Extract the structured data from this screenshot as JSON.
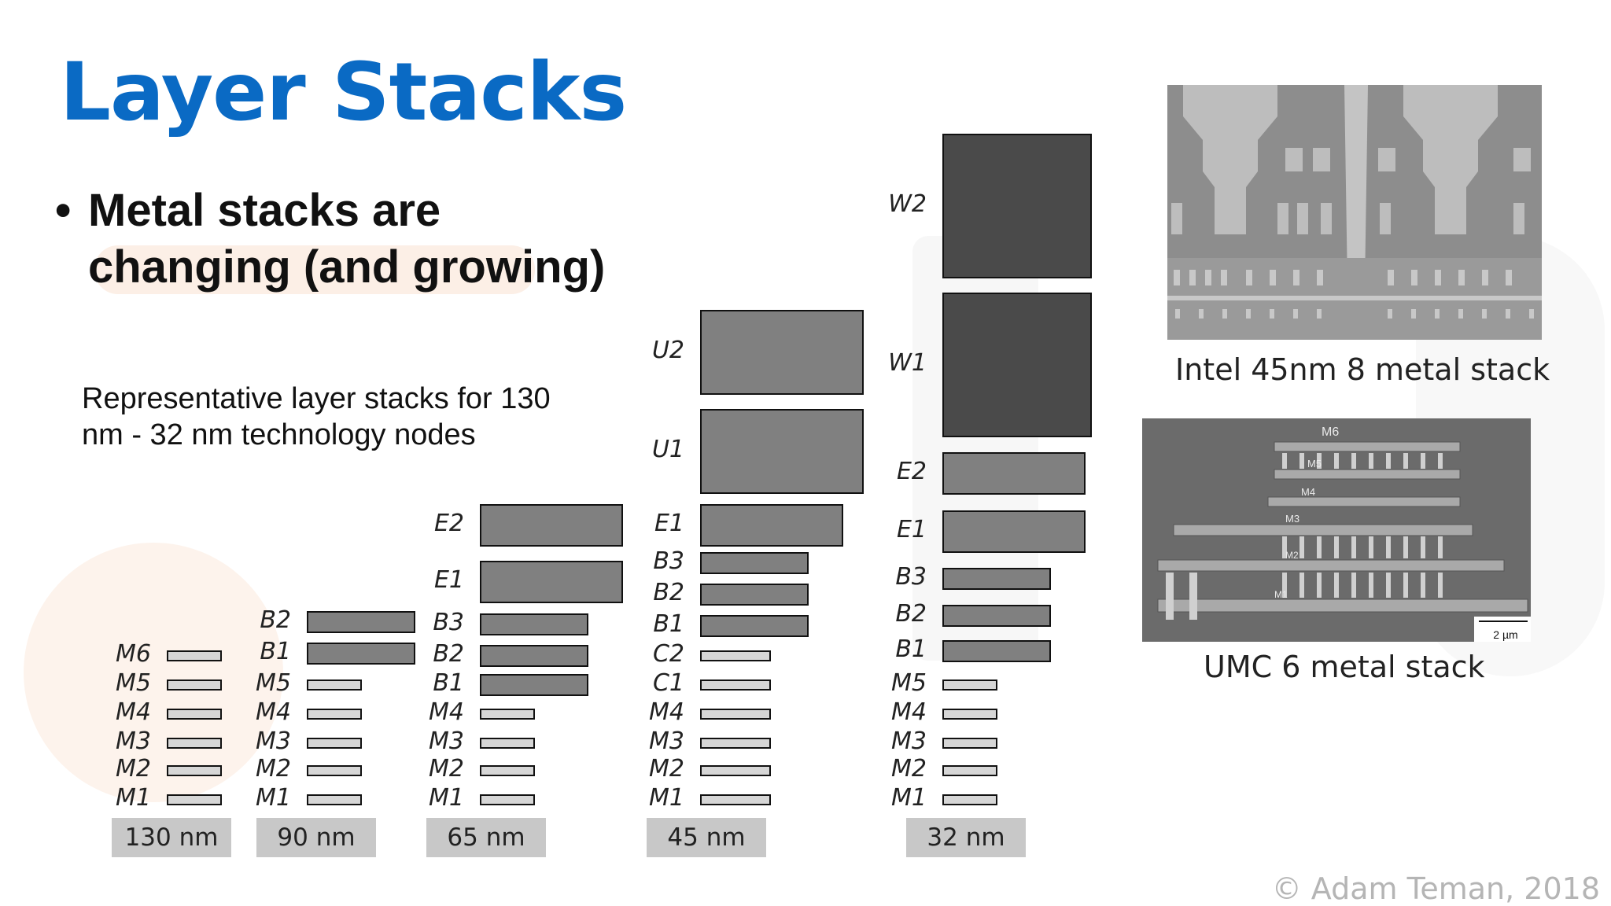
{
  "slide": {
    "title": "Layer Stacks",
    "bullet_marker": "•",
    "bullet": "Metal stacks are changing (and growing)",
    "caption": "Representative layer stacks for 130 nm - 32 nm technology nodes",
    "copyright": "© Adam Teman, 2018"
  },
  "stacks": [
    {
      "node": "130 nm",
      "layers": [
        {
          "name": "M6",
          "size": "thin"
        },
        {
          "name": "M5",
          "size": "thin"
        },
        {
          "name": "M4",
          "size": "thin"
        },
        {
          "name": "M3",
          "size": "thin"
        },
        {
          "name": "M2",
          "size": "thin"
        },
        {
          "name": "M1",
          "size": "thin"
        }
      ]
    },
    {
      "node": "90 nm",
      "layers": [
        {
          "name": "B2",
          "size": "mid"
        },
        {
          "name": "B1",
          "size": "mid"
        },
        {
          "name": "M5",
          "size": "thin"
        },
        {
          "name": "M4",
          "size": "thin"
        },
        {
          "name": "M3",
          "size": "thin"
        },
        {
          "name": "M2",
          "size": "thin"
        },
        {
          "name": "M1",
          "size": "thin"
        }
      ]
    },
    {
      "node": "65 nm",
      "layers": [
        {
          "name": "E2",
          "size": "large"
        },
        {
          "name": "E1",
          "size": "large"
        },
        {
          "name": "B3",
          "size": "mid"
        },
        {
          "name": "B2",
          "size": "mid"
        },
        {
          "name": "B1",
          "size": "mid"
        },
        {
          "name": "M4",
          "size": "thin"
        },
        {
          "name": "M3",
          "size": "thin"
        },
        {
          "name": "M2",
          "size": "thin"
        },
        {
          "name": "M1",
          "size": "thin"
        }
      ]
    },
    {
      "node": "45 nm",
      "layers": [
        {
          "name": "U2",
          "size": "xlarge"
        },
        {
          "name": "U1",
          "size": "xlarge"
        },
        {
          "name": "E1",
          "size": "large"
        },
        {
          "name": "B3",
          "size": "mid"
        },
        {
          "name": "B2",
          "size": "mid"
        },
        {
          "name": "B1",
          "size": "mid"
        },
        {
          "name": "C2",
          "size": "thin"
        },
        {
          "name": "C1",
          "size": "thin"
        },
        {
          "name": "M4",
          "size": "thin"
        },
        {
          "name": "M3",
          "size": "thin"
        },
        {
          "name": "M2",
          "size": "thin"
        },
        {
          "name": "M1",
          "size": "thin"
        }
      ]
    },
    {
      "node": "32 nm",
      "layers": [
        {
          "name": "W2",
          "size": "xxlarge"
        },
        {
          "name": "W1",
          "size": "xxlarge"
        },
        {
          "name": "E2",
          "size": "large"
        },
        {
          "name": "E1",
          "size": "large"
        },
        {
          "name": "B3",
          "size": "mid"
        },
        {
          "name": "B2",
          "size": "mid"
        },
        {
          "name": "B1",
          "size": "mid"
        },
        {
          "name": "M5",
          "size": "thin"
        },
        {
          "name": "M4",
          "size": "thin"
        },
        {
          "name": "M3",
          "size": "thin"
        },
        {
          "name": "M2",
          "size": "thin"
        },
        {
          "name": "M1",
          "size": "thin"
        }
      ]
    }
  ],
  "photos": {
    "intel": {
      "caption": "Intel 45nm 8 metal stack"
    },
    "umc": {
      "caption": "UMC 6 metal stack",
      "labels": [
        "M6",
        "M5",
        "M4",
        "M3",
        "M2",
        "M1"
      ],
      "scale_label": "2 µm"
    }
  }
}
